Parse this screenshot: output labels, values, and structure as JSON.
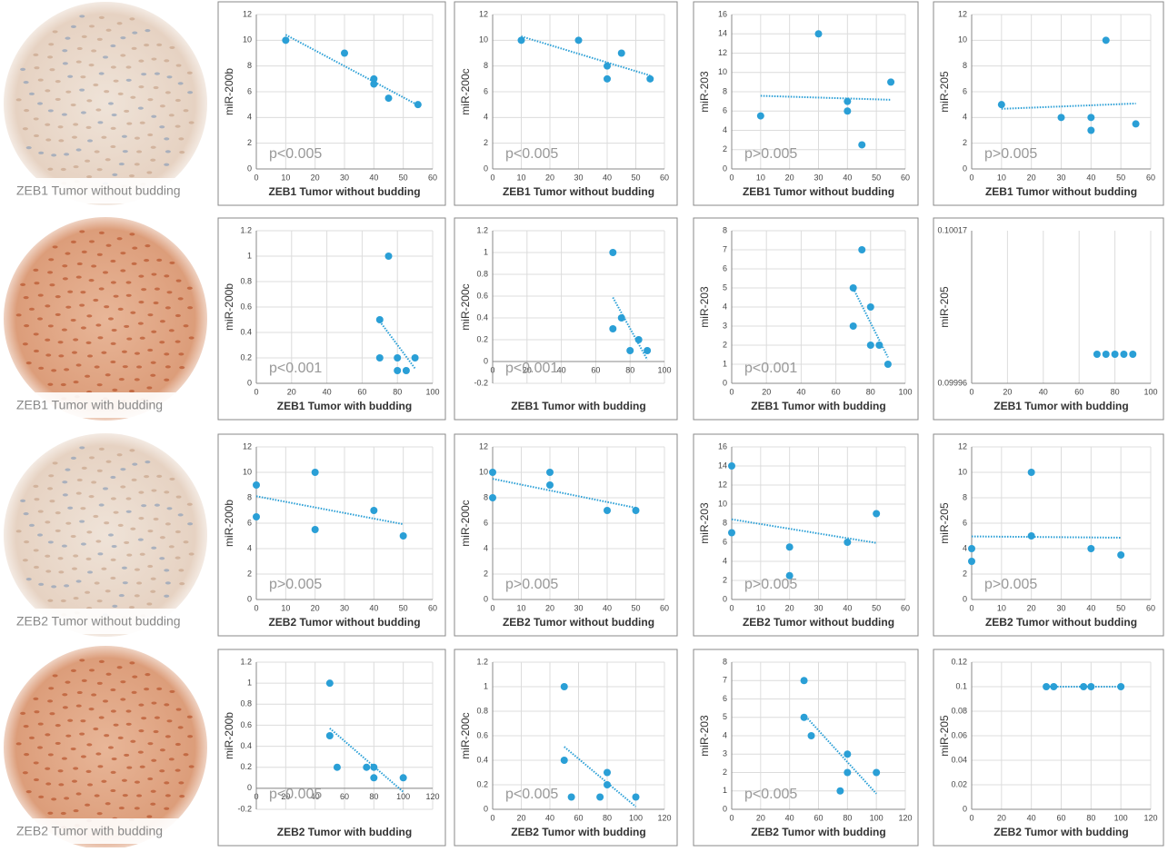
{
  "images": [
    {
      "caption": "ZEB1 Tumor without budding"
    },
    {
      "caption": "ZEB1 Tumor with budding"
    },
    {
      "caption": "ZEB2 Tumor without budding"
    },
    {
      "caption": "ZEB2 Tumor with budding"
    }
  ],
  "chart_data": [
    {
      "type": "scatter",
      "xlabel": "ZEB1 Tumor without budding",
      "ylabel": "miR-200b",
      "annotation": "p<0.005",
      "color": "#2a9fd6",
      "trendline": true,
      "grid": "both",
      "x": [
        10,
        30,
        40,
        40,
        45,
        55
      ],
      "y": [
        10,
        9,
        7,
        6.6,
        5.5,
        5
      ],
      "xlim": [
        0,
        60
      ],
      "xticks": [
        0,
        10,
        20,
        30,
        40,
        50,
        60
      ],
      "ylim": [
        0,
        12
      ],
      "yticks": [
        0,
        2,
        4,
        6,
        8,
        10,
        12
      ]
    },
    {
      "type": "scatter",
      "xlabel": "ZEB1 Tumor without budding",
      "ylabel": "miR-200c",
      "annotation": "p<0.005",
      "color": "#2a9fd6",
      "trendline": true,
      "grid": "both",
      "x": [
        10,
        30,
        40,
        40,
        45,
        55
      ],
      "y": [
        10,
        10,
        8,
        7,
        9,
        7
      ],
      "xlim": [
        0,
        60
      ],
      "xticks": [
        0,
        10,
        20,
        30,
        40,
        50,
        60
      ],
      "ylim": [
        0,
        12
      ],
      "yticks": [
        0,
        2,
        4,
        6,
        8,
        10,
        12
      ]
    },
    {
      "type": "scatter",
      "xlabel": "ZEB1 Tumor without budding",
      "ylabel": "miR-203",
      "annotation": "p>0.005",
      "color": "#2a9fd6",
      "trendline": true,
      "grid": "both",
      "x": [
        10,
        30,
        40,
        40,
        45,
        55
      ],
      "y": [
        5.5,
        14,
        7,
        6,
        2.5,
        9
      ],
      "xlim": [
        0,
        60
      ],
      "xticks": [
        0,
        10,
        20,
        30,
        40,
        50,
        60
      ],
      "ylim": [
        0,
        16
      ],
      "yticks": [
        0,
        2,
        4,
        6,
        8,
        10,
        12,
        14,
        16
      ]
    },
    {
      "type": "scatter",
      "xlabel": "ZEB1 Tumor without budding",
      "ylabel": "miR-205",
      "annotation": "p>0.005",
      "color": "#2a9fd6",
      "trendline": true,
      "grid": "both",
      "x": [
        10,
        30,
        40,
        40,
        45,
        55
      ],
      "y": [
        5,
        4,
        4,
        3,
        10,
        3.5
      ],
      "xlim": [
        0,
        60
      ],
      "xticks": [
        0,
        10,
        20,
        30,
        40,
        50,
        60
      ],
      "ylim": [
        0,
        12
      ],
      "yticks": [
        0,
        2,
        4,
        6,
        8,
        10,
        12
      ]
    },
    {
      "type": "scatter",
      "xlabel": "ZEB1 Tumor with budding",
      "ylabel": "miR-200b",
      "annotation": "p<0.001",
      "color": "#2a9fd6",
      "trendline": true,
      "grid": "both",
      "x": [
        70,
        70,
        75,
        80,
        80,
        85,
        90
      ],
      "y": [
        0.5,
        0.2,
        1,
        0.2,
        0.1,
        0.1,
        0.2
      ],
      "xlim": [
        0,
        100
      ],
      "xticks": [
        0,
        20,
        40,
        60,
        80,
        100
      ],
      "ylim": [
        0,
        1.2
      ],
      "yticks": [
        0,
        0.2,
        0.4,
        0.6,
        0.8,
        1,
        1.2
      ]
    },
    {
      "type": "scatter",
      "xlabel": "ZEB1 Tumor with budding",
      "ylabel": "miR-200c",
      "annotation": "p<0.001",
      "color": "#2a9fd6",
      "trendline": true,
      "grid": "both",
      "x": [
        70,
        70,
        75,
        80,
        85,
        90
      ],
      "y": [
        0.3,
        1,
        0.4,
        0.1,
        0.2,
        0.1
      ],
      "xlim": [
        0,
        100
      ],
      "xticks": [
        0,
        20,
        40,
        60,
        80,
        100
      ],
      "ylim": [
        -0.2,
        1.2
      ],
      "yticks": [
        -0.2,
        0,
        0.2,
        0.4,
        0.6,
        0.8,
        1,
        1.2
      ]
    },
    {
      "type": "scatter",
      "xlabel": "ZEB1 Tumor with budding",
      "ylabel": "miR-203",
      "annotation": "p<0.001",
      "color": "#2a9fd6",
      "trendline": true,
      "grid": "both",
      "x": [
        70,
        70,
        75,
        80,
        80,
        85,
        90
      ],
      "y": [
        5,
        3,
        7,
        4,
        2,
        2,
        1
      ],
      "xlim": [
        0,
        100
      ],
      "xticks": [
        0,
        20,
        40,
        60,
        80,
        100
      ],
      "ylim": [
        0,
        8
      ],
      "yticks": [
        0,
        1,
        2,
        3,
        4,
        5,
        6,
        7,
        8
      ]
    },
    {
      "type": "scatter",
      "xlabel": "ZEB1 Tumor with budding",
      "ylabel": "miR-205",
      "color": "#2a9fd6",
      "trendline": false,
      "grid": "x",
      "x": [
        70,
        75,
        80,
        85,
        90
      ],
      "y": [
        0.1,
        0.1,
        0.1,
        0.1,
        0.1
      ],
      "xlim": [
        0,
        100
      ],
      "xticks": [
        0,
        20,
        40,
        60,
        80,
        100
      ],
      "ylim": [
        0.09996,
        0.10017
      ],
      "yticks": [
        0.09996,
        0.10017
      ]
    },
    {
      "type": "scatter",
      "xlabel": "ZEB2 Tumor without budding",
      "ylabel": "miR-200b",
      "annotation": "p>0.005",
      "color": "#2a9fd6",
      "trendline": true,
      "grid": "both",
      "x": [
        0,
        0,
        20,
        20,
        40,
        50
      ],
      "y": [
        9,
        6.5,
        10,
        5.5,
        7,
        5
      ],
      "xlim": [
        0,
        60
      ],
      "xticks": [
        0,
        10,
        20,
        30,
        40,
        50,
        60
      ],
      "ylim": [
        0,
        12
      ],
      "yticks": [
        0,
        2,
        4,
        6,
        8,
        10,
        12
      ]
    },
    {
      "type": "scatter",
      "xlabel": "ZEB2 Tumor without budding",
      "ylabel": "miR-200c",
      "annotation": "p>0.005",
      "color": "#2a9fd6",
      "trendline": true,
      "grid": "both",
      "x": [
        0,
        0,
        20,
        20,
        40,
        50
      ],
      "y": [
        10,
        8,
        10,
        9,
        7,
        7
      ],
      "xlim": [
        0,
        60
      ],
      "xticks": [
        0,
        10,
        20,
        30,
        40,
        50,
        60
      ],
      "ylim": [
        0,
        12
      ],
      "yticks": [
        0,
        2,
        4,
        6,
        8,
        10,
        12
      ]
    },
    {
      "type": "scatter",
      "xlabel": "ZEB2 Tumor without budding",
      "ylabel": "miR-203",
      "annotation": "p>0.005",
      "color": "#2a9fd6",
      "trendline": true,
      "grid": "both",
      "x": [
        0,
        0,
        20,
        20,
        40,
        50
      ],
      "y": [
        14,
        7,
        5.5,
        2.5,
        6,
        9
      ],
      "xlim": [
        0,
        60
      ],
      "xticks": [
        0,
        10,
        20,
        30,
        40,
        50,
        60
      ],
      "ylim": [
        0,
        16
      ],
      "yticks": [
        0,
        2,
        4,
        6,
        8,
        10,
        12,
        14,
        16
      ]
    },
    {
      "type": "scatter",
      "xlabel": "ZEB2 Tumor without budding",
      "ylabel": "miR-205",
      "annotation": "p>0.005",
      "color": "#2a9fd6",
      "trendline": true,
      "grid": "both",
      "x": [
        0,
        0,
        20,
        20,
        40,
        50
      ],
      "y": [
        4,
        3,
        10,
        5,
        4,
        3.5
      ],
      "xlim": [
        0,
        60
      ],
      "xticks": [
        0,
        10,
        20,
        30,
        40,
        50,
        60
      ],
      "ylim": [
        0,
        12
      ],
      "yticks": [
        0,
        2,
        4,
        6,
        8,
        10,
        12
      ]
    },
    {
      "type": "scatter",
      "xlabel": "ZEB2 Tumor with budding",
      "ylabel": "miR-200b",
      "annotation": "p<0.005",
      "color": "#2a9fd6",
      "trendline": true,
      "grid": "both",
      "x": [
        50,
        50,
        55,
        75,
        80,
        80,
        100
      ],
      "y": [
        1,
        0.5,
        0.2,
        0.2,
        0.2,
        0.1,
        0.1
      ],
      "xlim": [
        0,
        120
      ],
      "xticks": [
        0,
        20,
        40,
        60,
        80,
        100,
        120
      ],
      "ylim": [
        -0.2,
        1.2
      ],
      "yticks": [
        -0.2,
        0,
        0.2,
        0.4,
        0.6,
        0.8,
        1,
        1.2
      ]
    },
    {
      "type": "scatter",
      "xlabel": "ZEB2 Tumor with budding",
      "ylabel": "miR-200c",
      "annotation": "p<0.005",
      "color": "#2a9fd6",
      "trendline": true,
      "grid": "both",
      "x": [
        50,
        50,
        55,
        75,
        80,
        80,
        100
      ],
      "y": [
        1,
        0.4,
        0.1,
        0.1,
        0.3,
        0.2,
        0.1
      ],
      "xlim": [
        0,
        120
      ],
      "xticks": [
        0,
        20,
        40,
        60,
        80,
        100,
        120
      ],
      "ylim": [
        0,
        1.2
      ],
      "yticks": [
        0,
        0.2,
        0.4,
        0.6,
        0.8,
        1,
        1.2
      ]
    },
    {
      "type": "scatter",
      "xlabel": "ZEB2 Tumor with budding",
      "ylabel": "miR-203",
      "annotation": "p<0.005",
      "color": "#2a9fd6",
      "trendline": true,
      "grid": "both",
      "x": [
        50,
        50,
        55,
        75,
        80,
        80,
        100
      ],
      "y": [
        7,
        5,
        4,
        1,
        3,
        2,
        2
      ],
      "xlim": [
        0,
        120
      ],
      "xticks": [
        0,
        20,
        40,
        60,
        80,
        100,
        120
      ],
      "ylim": [
        0,
        8
      ],
      "yticks": [
        0,
        1,
        2,
        3,
        4,
        5,
        6,
        7,
        8
      ]
    },
    {
      "type": "scatter",
      "xlabel": "ZEB2 Tumor with budding",
      "ylabel": "miR-205",
      "color": "#2a9fd6",
      "trendline": true,
      "grid": "both",
      "x": [
        50,
        55,
        75,
        80,
        100
      ],
      "y": [
        0.1,
        0.1,
        0.1,
        0.1,
        0.1
      ],
      "xlim": [
        0,
        120
      ],
      "xticks": [
        0,
        20,
        40,
        60,
        80,
        100,
        120
      ],
      "ylim": [
        0,
        0.12
      ],
      "yticks": [
        0,
        0.02,
        0.04,
        0.06,
        0.08,
        0.1,
        0.12
      ]
    }
  ]
}
